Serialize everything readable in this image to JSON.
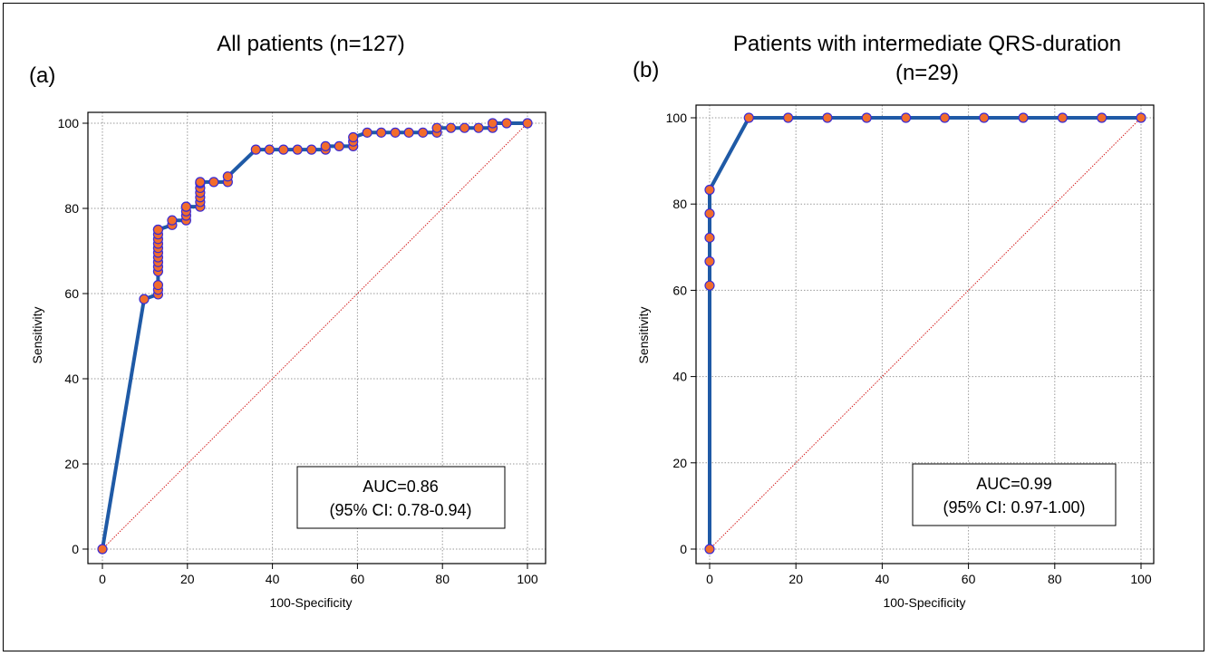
{
  "colors": {
    "curve": "#1f5aa6",
    "marker_fill": "#f26c2c",
    "marker_stroke": "#3a2bd4",
    "diagonal": "#d42020"
  },
  "chart_data": [
    {
      "type": "line",
      "panel_label": "(a)",
      "title": "All patients (n=127)",
      "xlabel": "100-Specificity",
      "ylabel": "Sensitivity",
      "xlim": [
        -3,
        102
      ],
      "ylim": [
        -3,
        106
      ],
      "xticks": [
        "0",
        "20",
        "40",
        "60",
        "80",
        "100"
      ],
      "yticks": [
        "0",
        "20",
        "40",
        "60",
        "80",
        "100"
      ],
      "grid": true,
      "reference_line": "diagonal",
      "annotation": [
        "AUC=0.86",
        "(95% CI: 0.78-0.94)"
      ],
      "series": [
        {
          "x": [
            0,
            9.8,
            13.1,
            13.1,
            13.1,
            13.1,
            13.1,
            13.1,
            13.1,
            13.1,
            13.1,
            13.1,
            13.1,
            13.1,
            13.1,
            13.1,
            16.4,
            16.4,
            19.7,
            19.7,
            19.7,
            19.7,
            19.7,
            23.0,
            23.0,
            23.0,
            23.0,
            23.0,
            23.0,
            23.0,
            26.2,
            29.5,
            29.5,
            36.1,
            39.3,
            42.6,
            45.9,
            49.2,
            52.5,
            52.5,
            55.7,
            59.0,
            59.0,
            59.0,
            62.3,
            65.6,
            68.9,
            72.1,
            75.4,
            78.7,
            78.7,
            82.0,
            85.2,
            88.5,
            91.8,
            91.8,
            95.1,
            100
          ],
          "y": [
            0,
            58.7,
            59.8,
            60.9,
            62.0,
            65.2,
            66.3,
            67.4,
            68.5,
            69.6,
            70.7,
            71.7,
            72.8,
            73.9,
            75.0,
            75.0,
            76.1,
            77.2,
            77.2,
            78.3,
            79.3,
            80.4,
            80.4,
            80.4,
            81.5,
            82.6,
            83.7,
            84.8,
            85.9,
            86.2,
            86.2,
            86.2,
            87.5,
            93.8,
            93.8,
            93.8,
            93.8,
            93.8,
            93.8,
            94.6,
            94.6,
            94.6,
            95.7,
            96.7,
            97.8,
            97.8,
            97.8,
            97.8,
            97.8,
            97.8,
            98.9,
            98.9,
            98.9,
            98.9,
            98.9,
            100,
            100,
            100
          ]
        }
      ]
    },
    {
      "type": "line",
      "panel_label": "(b)",
      "title_lines": [
        "Patients with intermediate QRS-duration",
        "(n=29)"
      ],
      "xlabel": "100-Specificity",
      "ylabel": "Sensitivity",
      "xlim": [
        -3,
        102
      ],
      "ylim": [
        -3,
        106
      ],
      "xticks": [
        "0",
        "20",
        "40",
        "60",
        "80",
        "100"
      ],
      "yticks": [
        "0",
        "20",
        "40",
        "60",
        "80",
        "100"
      ],
      "grid": true,
      "reference_line": "diagonal",
      "annotation": [
        "AUC=0.99",
        "(95% CI: 0.97-1.00)"
      ],
      "series": [
        {
          "x": [
            0,
            0,
            0,
            0,
            0,
            0,
            9.1,
            18.2,
            27.3,
            36.4,
            45.5,
            54.5,
            63.6,
            72.7,
            81.8,
            90.9,
            100
          ],
          "y": [
            0,
            61.1,
            66.7,
            72.2,
            77.8,
            83.3,
            100,
            100,
            100,
            100,
            100,
            100,
            100,
            100,
            100,
            100,
            100
          ]
        }
      ]
    }
  ]
}
